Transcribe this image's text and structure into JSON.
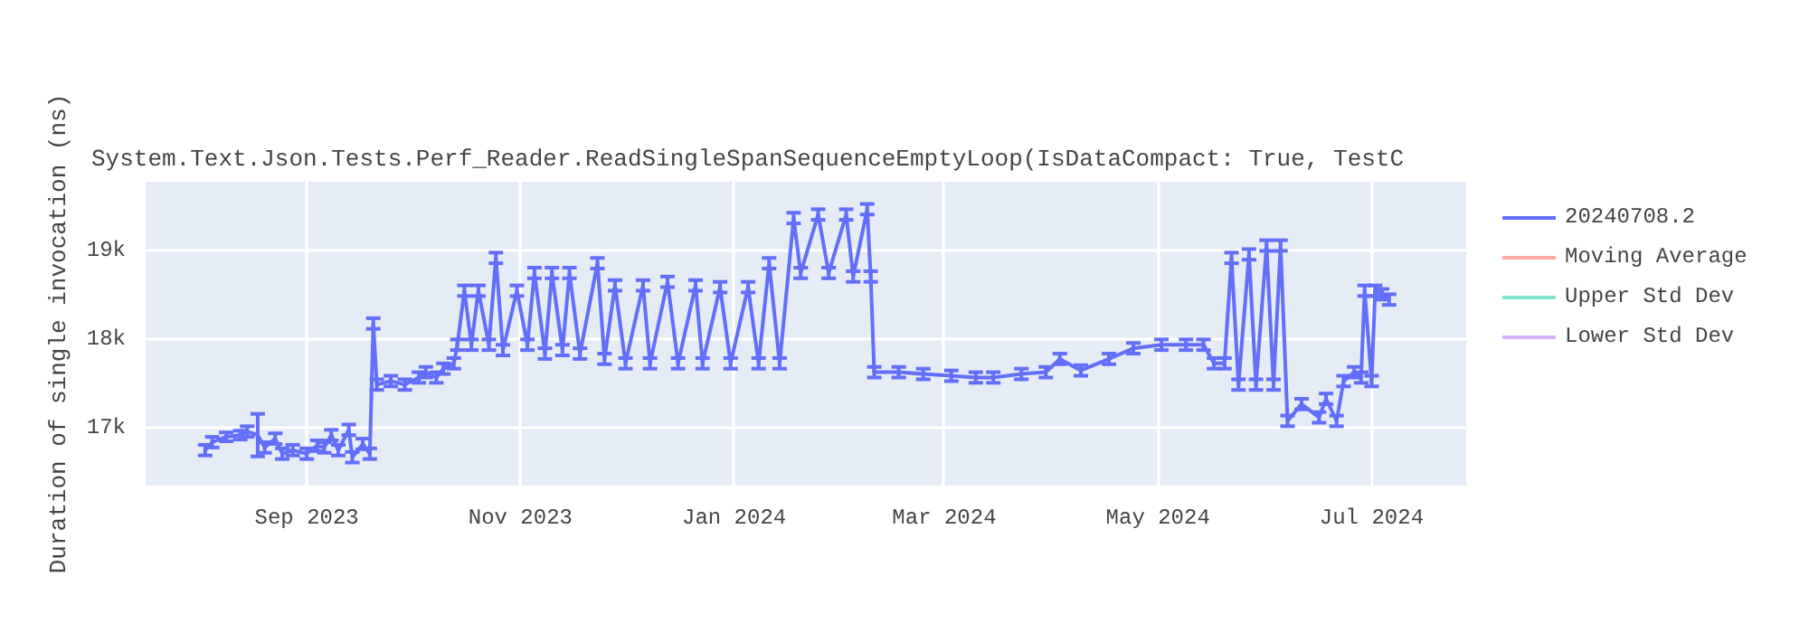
{
  "chart_data": {
    "type": "line",
    "title": "System.Text.Json.Tests.Perf_Reader.ReadSingleSpanSequenceEmptyLoop(IsDataCompact: True, TestC",
    "ylabel": "Duration of single invocation (ns)",
    "x": [
      "2023-08-03",
      "2023-08-05",
      "2023-08-09",
      "2023-08-13",
      "2023-08-15",
      "2023-08-18",
      "2023-08-20",
      "2023-08-23",
      "2023-08-25",
      "2023-08-28",
      "2023-09-01",
      "2023-09-04",
      "2023-09-06",
      "2023-09-08",
      "2023-09-10",
      "2023-09-13",
      "2023-09-14",
      "2023-09-17",
      "2023-09-19",
      "2023-09-20",
      "2023-09-21",
      "2023-09-25",
      "2023-09-29",
      "2023-10-03",
      "2023-10-05",
      "2023-10-08",
      "2023-10-10",
      "2023-10-13",
      "2023-10-14",
      "2023-10-16",
      "2023-10-18",
      "2023-10-20",
      "2023-10-23",
      "2023-10-25",
      "2023-10-27",
      "2023-10-31",
      "2023-11-03",
      "2023-11-05",
      "2023-11-08",
      "2023-11-10",
      "2023-11-13",
      "2023-11-15",
      "2023-11-18",
      "2023-11-23",
      "2023-11-25",
      "2023-11-28",
      "2023-12-01",
      "2023-12-06",
      "2023-12-08",
      "2023-12-13",
      "2023-12-16",
      "2023-12-21",
      "2023-12-23",
      "2023-12-28",
      "2023-12-31",
      "2024-01-05",
      "2024-01-08",
      "2024-01-11",
      "2024-01-14",
      "2024-01-18",
      "2024-01-20",
      "2024-01-25",
      "2024-01-28",
      "2024-02-02",
      "2024-02-04",
      "2024-02-08",
      "2024-02-09",
      "2024-02-10",
      "2024-02-17",
      "2024-02-24",
      "2024-03-03",
      "2024-03-10",
      "2024-03-15",
      "2024-03-23",
      "2024-03-30",
      "2024-04-03",
      "2024-04-09",
      "2024-04-17",
      "2024-04-24",
      "2024-05-02",
      "2024-05-09",
      "2024-05-14",
      "2024-05-17",
      "2024-05-20",
      "2024-05-22",
      "2024-05-24",
      "2024-05-27",
      "2024-05-29",
      "2024-06-01",
      "2024-06-03",
      "2024-06-05",
      "2024-06-07",
      "2024-06-11",
      "2024-06-16",
      "2024-06-18",
      "2024-06-21",
      "2024-06-23",
      "2024-06-26",
      "2024-06-28",
      "2024-06-29",
      "2024-07-01",
      "2024-07-02",
      "2024-07-04",
      "2024-07-06"
    ],
    "series": [
      {
        "name": "20240708.2",
        "color": "#636efa",
        "values": [
          16750,
          16840,
          16900,
          16920,
          16960,
          16920,
          16780,
          16880,
          16710,
          16750,
          16710,
          16800,
          16780,
          16920,
          16750,
          16980,
          16670,
          16820,
          16710,
          18180,
          17490,
          17530,
          17490,
          17570,
          17630,
          17570,
          17670,
          17730,
          17940,
          18550,
          17940,
          18550,
          17940,
          18920,
          17880,
          18550,
          17940,
          18750,
          17840,
          18750,
          17880,
          18750,
          17840,
          18860,
          17780,
          18610,
          17730,
          18610,
          17730,
          18650,
          17730,
          18610,
          17730,
          18590,
          17730,
          18590,
          17730,
          18860,
          17730,
          19370,
          18750,
          19410,
          18750,
          19410,
          18710,
          19470,
          18710,
          17630,
          17630,
          17610,
          17590,
          17570,
          17570,
          17610,
          17630,
          17780,
          17650,
          17780,
          17900,
          17940,
          17940,
          17940,
          17730,
          17730,
          18920,
          17490,
          18960,
          17490,
          19060,
          17490,
          19060,
          17080,
          17270,
          17120,
          17330,
          17080,
          17530,
          17630,
          17570,
          18550,
          17530,
          18550,
          18510,
          18450
        ],
        "errors": [
          60,
          60,
          50,
          50,
          60,
          240,
          60,
          60,
          60,
          60,
          60,
          60,
          60,
          60,
          60,
          60,
          60,
          60,
          60,
          60,
          60,
          60,
          60,
          60,
          60,
          60,
          60,
          60,
          60,
          60,
          60,
          60,
          60,
          60,
          60,
          60,
          60,
          60,
          60,
          60,
          60,
          60,
          60,
          60,
          60,
          60,
          60,
          60,
          60,
          60,
          60,
          60,
          60,
          60,
          60,
          60,
          60,
          60,
          60,
          60,
          60,
          60,
          60,
          60,
          60,
          60,
          60,
          60,
          60,
          60,
          60,
          60,
          60,
          60,
          60,
          60,
          60,
          60,
          60,
          60,
          60,
          60,
          60,
          60,
          60,
          60,
          60,
          60,
          60,
          60,
          60,
          60,
          60,
          60,
          60,
          60,
          60,
          60,
          60,
          60,
          60,
          60,
          60,
          60
        ]
      },
      {
        "name": "Moving Average",
        "color": "#ef553b",
        "values": [
          null,
          null,
          null,
          null,
          null,
          null,
          null,
          null,
          null,
          null,
          null,
          null,
          null,
          null,
          null,
          null,
          null,
          null,
          null,
          null,
          null,
          null,
          null,
          null,
          null,
          null,
          null,
          null,
          null,
          null,
          null,
          null,
          null,
          null,
          null,
          null,
          null,
          null,
          null,
          null,
          null,
          null,
          null,
          null,
          null,
          null,
          null,
          null,
          null,
          null,
          null,
          null,
          null,
          null,
          null,
          null,
          null,
          null,
          null,
          null,
          null,
          null,
          null,
          null,
          null,
          null,
          null,
          null,
          null,
          null,
          null,
          null,
          null,
          null,
          null,
          null,
          null,
          null,
          null,
          null,
          null,
          null,
          null,
          null,
          null,
          null,
          null,
          null,
          null,
          null,
          null,
          null,
          null,
          null,
          null,
          null,
          null,
          null,
          null,
          null,
          null,
          null,
          null,
          null
        ]
      },
      {
        "name": "Upper Std Dev",
        "color": "#00cc96",
        "values": [
          null,
          null,
          null,
          null,
          null,
          null,
          null,
          null,
          null,
          null,
          null,
          null,
          null,
          null,
          null,
          null,
          null,
          null,
          null,
          null,
          null,
          null,
          null,
          null,
          null,
          null,
          null,
          null,
          null,
          null,
          null,
          null,
          null,
          null,
          null,
          null,
          null,
          null,
          null,
          null,
          null,
          null,
          null,
          null,
          null,
          null,
          null,
          null,
          null,
          null,
          null,
          null,
          null,
          null,
          null,
          null,
          null,
          null,
          null,
          null,
          null,
          null,
          null,
          null,
          null,
          null,
          null,
          null,
          null,
          null,
          null,
          null,
          null,
          null,
          null,
          null,
          null,
          null,
          null,
          null,
          null,
          null,
          null,
          null,
          null,
          null,
          null,
          null,
          null,
          null,
          null,
          null,
          null,
          null,
          null,
          null,
          null,
          null,
          null,
          null,
          null,
          null,
          null,
          null
        ]
      },
      {
        "name": "Lower Std Dev",
        "color": "#ab63fa",
        "values": [
          null,
          null,
          null,
          null,
          null,
          null,
          null,
          null,
          null,
          null,
          null,
          null,
          null,
          null,
          null,
          null,
          null,
          null,
          null,
          null,
          null,
          null,
          null,
          null,
          null,
          null,
          null,
          null,
          null,
          null,
          null,
          null,
          null,
          null,
          null,
          null,
          null,
          null,
          null,
          null,
          null,
          null,
          null,
          null,
          null,
          null,
          null,
          null,
          null,
          null,
          null,
          null,
          null,
          null,
          null,
          null,
          null,
          null,
          null,
          null,
          null,
          null,
          null,
          null,
          null,
          null,
          null,
          null,
          null,
          null,
          null,
          null,
          null,
          null,
          null,
          null,
          null,
          null,
          null,
          null,
          null,
          null,
          null,
          null,
          null,
          null,
          null,
          null,
          null,
          null,
          null,
          null,
          null,
          null,
          null,
          null,
          null,
          null,
          null,
          null,
          null,
          null,
          null,
          null
        ]
      }
    ],
    "xlim": [
      "2023-07-17",
      "2024-07-28"
    ],
    "xticks": [
      {
        "value": "2023-09-01",
        "label": "Sep 2023"
      },
      {
        "value": "2023-11-01",
        "label": "Nov 2023"
      },
      {
        "value": "2024-01-01",
        "label": "Jan 2024"
      },
      {
        "value": "2024-03-01",
        "label": "Mar 2024"
      },
      {
        "value": "2024-05-01",
        "label": "May 2024"
      },
      {
        "value": "2024-07-01",
        "label": "Jul 2024"
      }
    ],
    "ylim": [
      16350,
      19780
    ],
    "yticks": [
      {
        "value": 17000,
        "label": "17k"
      },
      {
        "value": 18000,
        "label": "18k"
      },
      {
        "value": 19000,
        "label": "19k"
      }
    ],
    "grid": true,
    "legend": "top right"
  }
}
